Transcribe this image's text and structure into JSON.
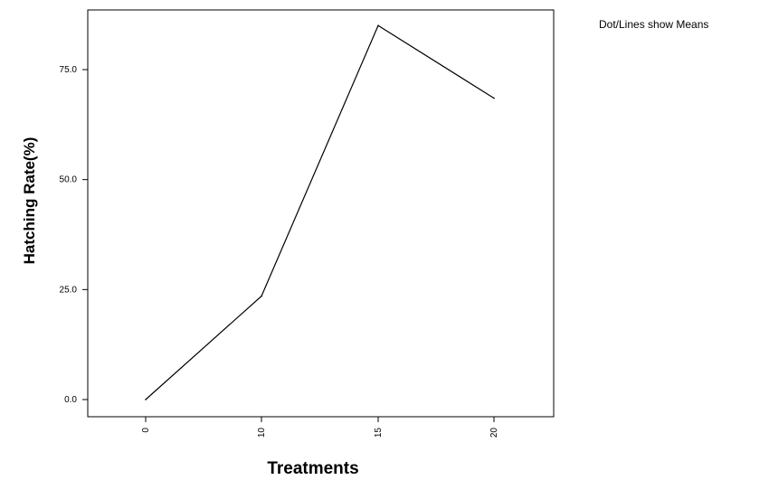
{
  "note": "Dot/Lines show Means",
  "chart_data": {
    "type": "line",
    "title": "",
    "xlabel": "Treatments",
    "ylabel": "Hatching Rate(%)",
    "categories": [
      "0",
      "10",
      "15",
      "20"
    ],
    "x": [
      0,
      10,
      15,
      20
    ],
    "series": [
      {
        "values": [
          0.0,
          23.5,
          85.0,
          68.5
        ]
      }
    ],
    "y_ticks": [
      0,
      25,
      50,
      75
    ],
    "y_tick_labels": [
      "0.0",
      "25.0",
      "50.0",
      "75.0"
    ],
    "ylim": [
      -4,
      88
    ],
    "grid": false,
    "colors": {
      "line": "#000000",
      "frame": "#000000"
    }
  }
}
